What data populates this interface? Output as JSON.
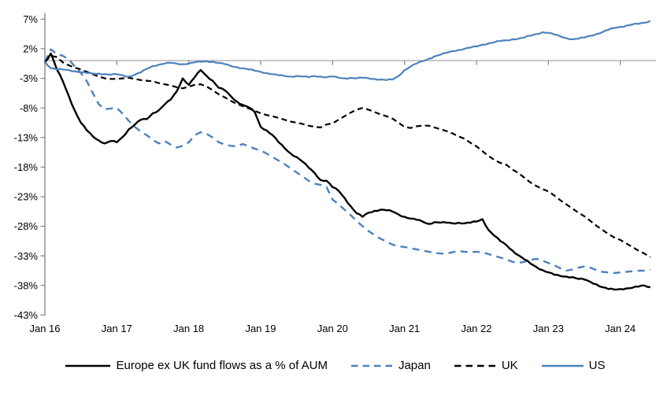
{
  "chart_data": {
    "type": "line",
    "title": "",
    "x_start_year": 2016,
    "x_months_per_point": 1,
    "xlim": [
      2016.0,
      2024.55
    ],
    "ylim": [
      -43,
      7
    ],
    "grid": "zero-line-only",
    "legend_position": "bottom",
    "x_ticks": [
      {
        "label": "Jan 16",
        "year": 2016
      },
      {
        "label": "Jan 17",
        "year": 2017
      },
      {
        "label": "Jan 18",
        "year": 2018
      },
      {
        "label": "Jan 19",
        "year": 2019
      },
      {
        "label": "Jan 20",
        "year": 2020
      },
      {
        "label": "Jan 21",
        "year": 2021
      },
      {
        "label": "Jan 22",
        "year": 2022
      },
      {
        "label": "Jan 23",
        "year": 2023
      },
      {
        "label": "Jan 24",
        "year": 2024
      }
    ],
    "y_ticks": [
      {
        "label": "7%",
        "value": 7
      },
      {
        "label": "2%",
        "value": 2
      },
      {
        "label": "-3%",
        "value": -3
      },
      {
        "label": "-8%",
        "value": -8
      },
      {
        "label": "-13%",
        "value": -13
      },
      {
        "label": "-18%",
        "value": -18
      },
      {
        "label": "-23%",
        "value": -23
      },
      {
        "label": "-28%",
        "value": -28
      },
      {
        "label": "-33%",
        "value": -33
      },
      {
        "label": "-38%",
        "value": -38
      },
      {
        "label": "-43%",
        "value": -43
      }
    ],
    "series": [
      {
        "key": "uk",
        "name": "UK",
        "color": "#000000",
        "dash": "dashed",
        "dash_pattern": "7 4.5",
        "width": 2.2,
        "jitter": 0,
        "values_monthly": [
          -0.2,
          0.8,
          0.6,
          -0.3,
          -0.8,
          -1.2,
          -1.5,
          -1.9,
          -2.3,
          -2.7,
          -3.0,
          -3.1,
          -3.1,
          -3.0,
          -2.9,
          -3.1,
          -3.3,
          -3.4,
          -3.5,
          -3.8,
          -4.0,
          -4.2,
          -4.5,
          -4.7,
          -4.4,
          -4.1,
          -4.0,
          -4.4,
          -5.0,
          -5.7,
          -6.2,
          -6.8,
          -7.3,
          -7.7,
          -8.1,
          -8.5,
          -8.9,
          -9.2,
          -9.4,
          -9.7,
          -10.0,
          -10.3,
          -10.5,
          -10.7,
          -11.0,
          -11.2,
          -11.3,
          -10.8,
          -10.6,
          -10.0,
          -9.4,
          -8.8,
          -8.3,
          -8.0,
          -8.3,
          -8.7,
          -9.1,
          -9.4,
          -9.8,
          -10.5,
          -11.2,
          -11.4,
          -11.1,
          -11.0,
          -11.0,
          -11.3,
          -11.6,
          -11.9,
          -12.3,
          -12.8,
          -13.2,
          -13.9,
          -14.5,
          -15.3,
          -16.1,
          -16.8,
          -17.3,
          -17.6,
          -18.4,
          -19.0,
          -19.8,
          -20.6,
          -21.2,
          -21.7,
          -22.1,
          -22.8,
          -23.6,
          -24.3,
          -25.0,
          -25.7,
          -26.3,
          -27.1,
          -27.9,
          -28.6,
          -29.3,
          -29.9,
          -30.3,
          -30.9,
          -31.5,
          -32.1,
          -32.6,
          -33.2
        ]
      },
      {
        "key": "japan",
        "name": "Japan",
        "color": "#4d82bc",
        "dash": "dashed",
        "dash_pattern": "9 6.5",
        "width": 2.4,
        "jitter": 0,
        "values_monthly": [
          -0.2,
          1.9,
          1.1,
          0.8,
          0.2,
          -1.0,
          -2.1,
          -3.5,
          -5.5,
          -7.4,
          -8.2,
          -8.1,
          -8.0,
          -9.0,
          -10.2,
          -11.2,
          -12.0,
          -12.6,
          -13.4,
          -14.0,
          -13.6,
          -14.2,
          -14.7,
          -14.4,
          -13.8,
          -12.6,
          -12.1,
          -12.4,
          -13.0,
          -13.8,
          -14.2,
          -14.4,
          -14.5,
          -14.1,
          -14.5,
          -14.9,
          -15.2,
          -15.7,
          -16.3,
          -16.9,
          -17.5,
          -18.2,
          -18.9,
          -19.6,
          -20.3,
          -20.8,
          -21.0,
          -21.4,
          -23.5,
          -24.3,
          -25.2,
          -26.1,
          -27.1,
          -28.0,
          -28.8,
          -29.5,
          -30.1,
          -30.6,
          -31.1,
          -31.4,
          -31.5,
          -31.7,
          -31.9,
          -32.1,
          -32.3,
          -32.5,
          -32.6,
          -32.6,
          -32.4,
          -32.2,
          -32.3,
          -32.4,
          -32.3,
          -32.4,
          -32.7,
          -33.0,
          -33.3,
          -33.6,
          -34.0,
          -34.2,
          -34.0,
          -33.7,
          -33.5,
          -33.8,
          -34.2,
          -34.6,
          -35.1,
          -35.5,
          -35.3,
          -35.0,
          -34.8,
          -35.0,
          -35.4,
          -35.7,
          -35.8,
          -35.9,
          -35.8,
          -35.7,
          -35.6,
          -35.5,
          -35.5,
          -35.3
        ]
      },
      {
        "key": "europe_ex_uk",
        "name": "Europe ex UK fund flows as a % of AUM",
        "color": "#000000",
        "dash": "solid",
        "dash_pattern": "",
        "width": 2.4,
        "jitter": 0.9,
        "values_monthly": [
          -0.3,
          1.2,
          -1.5,
          -3.5,
          -6.0,
          -8.5,
          -10.5,
          -11.8,
          -12.8,
          -13.5,
          -14.0,
          -13.6,
          -13.8,
          -12.9,
          -11.6,
          -10.8,
          -10.0,
          -9.9,
          -8.9,
          -8.4,
          -7.4,
          -6.6,
          -5.2,
          -3.0,
          -4.1,
          -2.8,
          -1.6,
          -2.6,
          -3.4,
          -4.6,
          -5.0,
          -6.0,
          -6.9,
          -7.5,
          -7.9,
          -8.7,
          -11.2,
          -11.8,
          -12.6,
          -13.8,
          -14.8,
          -15.7,
          -16.3,
          -17.1,
          -18.1,
          -19.0,
          -20.2,
          -20.3,
          -21.4,
          -22.0,
          -23.2,
          -24.6,
          -25.8,
          -26.4,
          -25.7,
          -25.4,
          -25.2,
          -25.3,
          -25.5,
          -26.0,
          -26.4,
          -26.7,
          -26.9,
          -27.2,
          -27.6,
          -27.3,
          -27.4,
          -27.4,
          -27.5,
          -27.4,
          -27.5,
          -27.4,
          -27.2,
          -26.8,
          -28.6,
          -29.6,
          -30.5,
          -31.2,
          -32.1,
          -32.9,
          -33.6,
          -34.3,
          -34.9,
          -35.4,
          -35.8,
          -36.2,
          -36.4,
          -36.5,
          -36.6,
          -36.9,
          -37.0,
          -37.4,
          -37.8,
          -38.3,
          -38.6,
          -38.7,
          -38.6,
          -38.5,
          -38.4,
          -38.2,
          -38.0,
          -38.3
        ]
      },
      {
        "key": "us",
        "name": "US",
        "color": "#4d82bc",
        "dash": "solid",
        "dash_pattern": "",
        "width": 2.2,
        "jitter": 0.8,
        "values_monthly": [
          -0.2,
          -1.3,
          -1.5,
          -1.5,
          -1.6,
          -1.8,
          -2.0,
          -2.1,
          -2.2,
          -2.2,
          -2.3,
          -2.4,
          -2.3,
          -2.5,
          -2.7,
          -2.4,
          -2.0,
          -1.4,
          -0.9,
          -0.7,
          -0.5,
          -0.4,
          -0.5,
          -0.6,
          -0.5,
          -0.3,
          -0.2,
          -0.1,
          -0.2,
          -0.4,
          -0.6,
          -0.9,
          -1.1,
          -1.3,
          -1.5,
          -1.7,
          -1.9,
          -2.1,
          -2.3,
          -2.5,
          -2.6,
          -2.7,
          -2.6,
          -2.7,
          -2.8,
          -2.6,
          -2.7,
          -2.8,
          -2.7,
          -2.9,
          -3.0,
          -2.9,
          -3.0,
          -2.9,
          -3.0,
          -3.1,
          -3.2,
          -3.3,
          -3.2,
          -2.6,
          -1.6,
          -1.0,
          -0.5,
          -0.1,
          0.3,
          0.7,
          1.0,
          1.3,
          1.6,
          1.8,
          2.0,
          2.2,
          2.4,
          2.7,
          2.9,
          3.1,
          3.3,
          3.4,
          3.6,
          3.7,
          3.9,
          4.2,
          4.5,
          4.8,
          4.7,
          4.4,
          4.1,
          3.8,
          3.6,
          3.7,
          3.9,
          4.2,
          4.5,
          4.8,
          5.2,
          5.5,
          5.7,
          5.9,
          6.1,
          6.2,
          6.4,
          6.7
        ]
      }
    ],
    "legend_order": [
      "europe_ex_uk",
      "japan",
      "uk",
      "us"
    ]
  },
  "colors": {
    "axis": "#808080",
    "zero_line": "#a6a6a6",
    "text": "#000000",
    "background": "#ffffff",
    "accent_blue": "#4d82bc",
    "series_black": "#000000"
  }
}
